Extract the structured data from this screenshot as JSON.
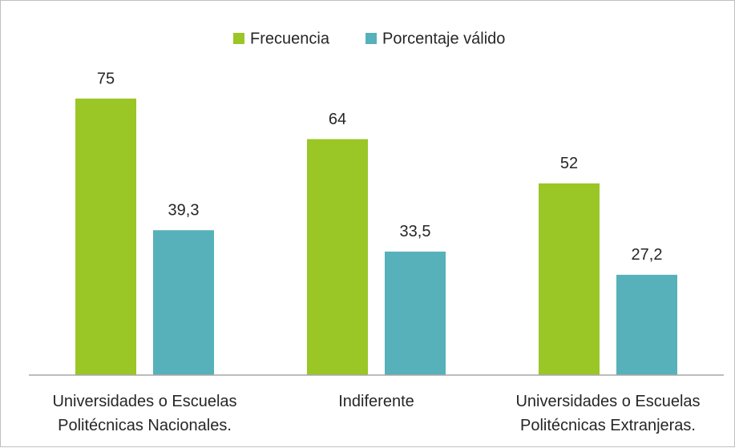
{
  "chart_data": {
    "type": "bar",
    "categories": [
      "Universidades o Escuelas Politécnicas Nacionales.",
      "Indiferente",
      "Universidades o Escuelas Politécnicas Extranjeras."
    ],
    "series": [
      {
        "name": "Frecuencia",
        "color": "#9ac626",
        "values": [
          75,
          64,
          52
        ],
        "value_labels": [
          "75",
          "64",
          "52"
        ]
      },
      {
        "name": "Porcentaje válido",
        "color": "#57b1bb",
        "values": [
          39.3,
          33.5,
          27.2
        ],
        "value_labels": [
          "39,3",
          "33,5",
          "27,2"
        ]
      }
    ],
    "ylim": [
      0,
      75
    ],
    "legend": "top"
  }
}
